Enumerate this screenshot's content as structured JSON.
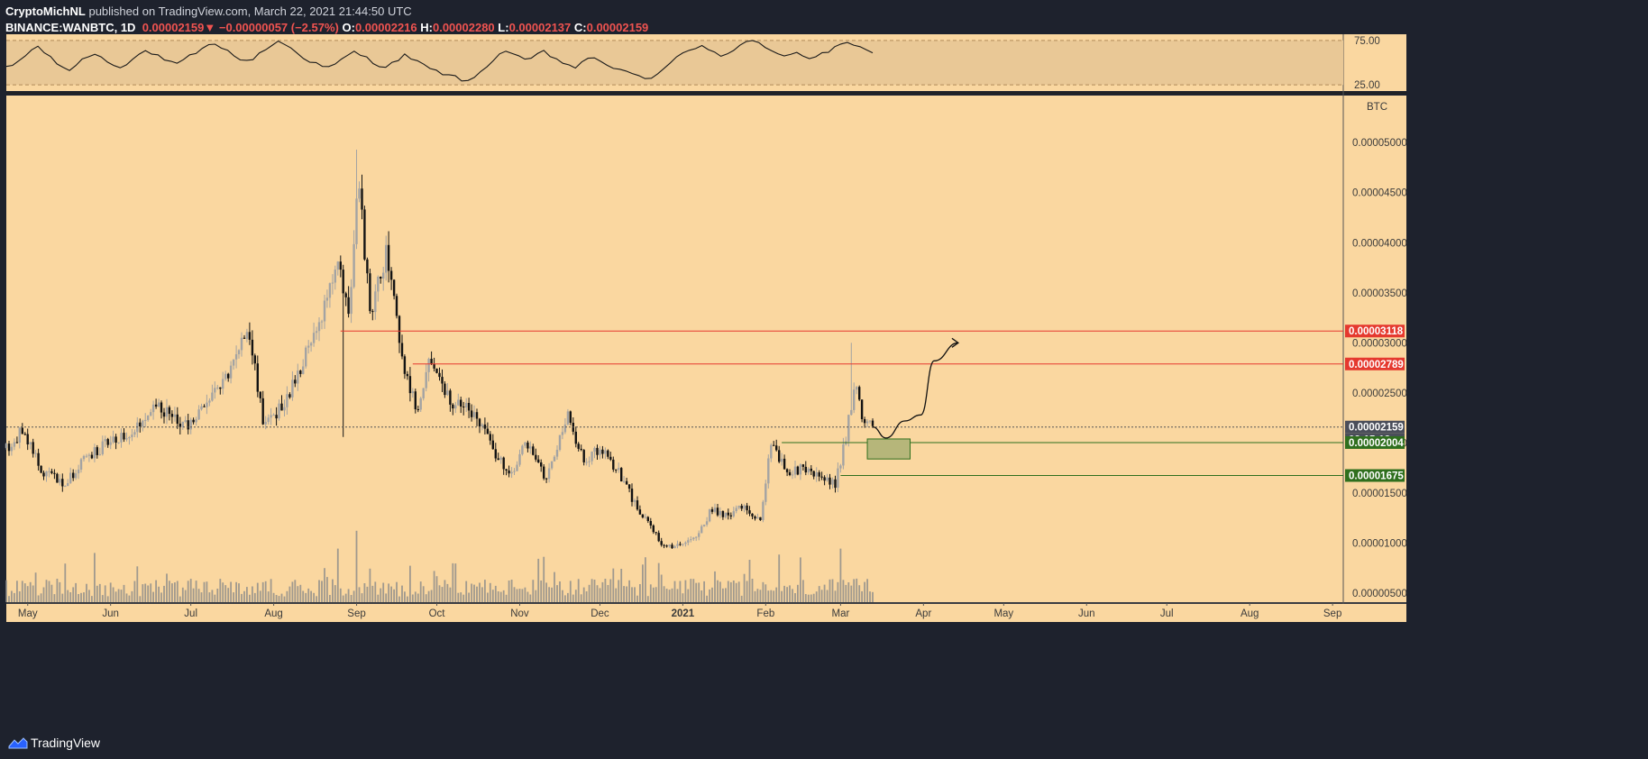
{
  "header": {
    "publisher": "CryptoMichNL",
    "published_text": "published on TradingView.com, March 22, 2021 21:44:50 UTC",
    "symbol": "BINANCE:WANBTC, 1D",
    "last": "0.00002159",
    "direction_glyph": "▼",
    "change": "−0.00000057 (−2.57%)",
    "open_label": "O:",
    "open": "0.00002216",
    "high_label": "H:",
    "high": "0.00002280",
    "low_label": "L:",
    "low": "0.00002137",
    "close_label": "C:",
    "close": "0.00002159"
  },
  "footer": {
    "brand": "TradingView",
    "logo_icon": "tradingview-logo-icon"
  },
  "colors": {
    "background": "#fad7a0",
    "frame": "#1e222d",
    "rsi_band": "#e9c896",
    "up_candle": "#a3a3a3",
    "down_candle": "#131313",
    "resistance": "#e5392f",
    "support": "#2f6f1e",
    "zone_fill": "#b6b67a",
    "last_price_badge": "#4a4e5a"
  },
  "chart_data": [
    {
      "type": "line",
      "name": "rsi-pane",
      "y_ticks": [
        "75.00",
        "25.00"
      ],
      "bands": [
        75,
        25
      ],
      "ylim": [
        18,
        82
      ],
      "values": [
        44,
        47,
        52,
        58,
        64,
        68,
        62,
        55,
        49,
        45,
        42,
        47,
        53,
        58,
        60,
        56,
        51,
        48,
        46,
        49,
        54,
        59,
        63,
        61,
        57,
        53,
        50,
        48,
        52,
        57,
        61,
        65,
        69,
        72,
        68,
        63,
        58,
        54,
        51,
        55,
        60,
        65,
        70,
        74,
        71,
        66,
        61,
        56,
        52,
        49,
        46,
        44,
        48,
        53,
        58,
        62,
        59,
        55,
        51,
        47,
        45,
        49,
        54,
        58,
        55,
        51,
        47,
        43,
        40,
        38,
        36,
        34,
        31,
        28,
        33,
        40,
        47,
        53,
        59,
        64,
        60,
        56,
        52,
        55,
        59,
        62,
        58,
        54,
        50,
        47,
        45,
        49,
        53,
        56,
        52,
        48,
        44,
        41,
        39,
        37,
        35,
        33,
        34,
        38,
        43,
        49,
        55,
        60,
        64,
        67,
        70,
        66,
        62,
        58,
        61,
        65,
        69,
        73,
        76,
        71,
        66,
        62,
        59,
        57,
        60,
        63,
        58,
        55,
        57,
        60,
        62,
        66,
        72,
        74,
        70,
        66,
        63,
        61
      ]
    },
    {
      "type": "candlestick",
      "name": "wanbtc-price",
      "unit": "BTC",
      "ylim": [
        4.1e-06,
        5.47e-05
      ],
      "x_labels": [
        "May",
        "Jun",
        "Jul",
        "Aug",
        "Sep",
        "Oct",
        "Nov",
        "Dec",
        "2021",
        "Feb",
        "Mar",
        "Apr",
        "May",
        "Jun",
        "Jul",
        "Aug",
        "Sep"
      ],
      "y_ticks": [
        5e-06,
        1e-05,
        1.5e-05,
        2e-05,
        2.5e-05,
        3e-05,
        3.5e-05,
        4e-05,
        4.5e-05,
        5e-05
      ],
      "y_tick_labels": [
        "0.00000500",
        "0.00001000",
        "0.00001500",
        "0.00002000",
        "0.00002500",
        "0.00003000",
        "0.00003500",
        "0.00004000",
        "0.00004500",
        "0.00005000"
      ],
      "anchor_path": [
        [
          0,
          1.95e-05
        ],
        [
          6,
          2.12e-05
        ],
        [
          14,
          1.7e-05
        ],
        [
          22,
          1.6e-05
        ],
        [
          30,
          1.85e-05
        ],
        [
          38,
          2e-05
        ],
        [
          48,
          2.15e-05
        ],
        [
          56,
          2.4e-05
        ],
        [
          62,
          2.25e-05
        ],
        [
          68,
          2.15e-05
        ],
        [
          76,
          2.4e-05
        ],
        [
          84,
          2.75e-05
        ],
        [
          90,
          3.2e-05
        ],
        [
          96,
          2.25e-05
        ],
        [
          104,
          2.35e-05
        ],
        [
          112,
          2.9e-05
        ],
        [
          118,
          3.3e-05
        ],
        [
          124,
          3.75e-05
        ],
        [
          128,
          3.3e-05
        ],
        [
          132,
          4.65e-05
        ],
        [
          136,
          3.25e-05
        ],
        [
          142,
          3.9e-05
        ],
        [
          148,
          2.85e-05
        ],
        [
          154,
          2.3e-05
        ],
        [
          158,
          2.85e-05
        ],
        [
          166,
          2.4e-05
        ],
        [
          174,
          2.32e-05
        ],
        [
          182,
          1.95e-05
        ],
        [
          188,
          1.65e-05
        ],
        [
          194,
          2e-05
        ],
        [
          202,
          1.65e-05
        ],
        [
          210,
          2.25e-05
        ],
        [
          216,
          1.8e-05
        ],
        [
          222,
          1.95e-05
        ],
        [
          228,
          1.75e-05
        ],
        [
          234,
          1.45e-05
        ],
        [
          240,
          1.2e-05
        ],
        [
          246,
          9.5e-06
        ],
        [
          252,
          1e-05
        ],
        [
          258,
          1.05e-05
        ],
        [
          264,
          1.35e-05
        ],
        [
          270,
          1.25e-05
        ],
        [
          276,
          1.4e-05
        ],
        [
          282,
          1.2e-05
        ],
        [
          286,
          2e-05
        ],
        [
          292,
          1.7e-05
        ],
        [
          298,
          1.75e-05
        ],
        [
          304,
          1.65e-05
        ],
        [
          310,
          1.6e-05
        ],
        [
          314,
          2.05e-05
        ],
        [
          316,
          2.4e-05
        ],
        [
          318,
          2.6e-05
        ],
        [
          320,
          2.28e-05
        ],
        [
          322,
          2.16e-05
        ],
        [
          323,
          2.16e-05
        ],
        [
          324,
          2.16e-05
        ]
      ],
      "volume_range": [
        0,
        1.0
      ],
      "drawings": {
        "resistance_levels": [
          3.118e-05,
          2.789e-05
        ],
        "support_levels": [
          2.004e-05,
          1.675e-05
        ],
        "last_price": 2.159e-05,
        "buy_zone_price_range": [
          1.84e-05,
          2.04e-05
        ],
        "projection_path": [
          [
            324,
            2.16e-05
          ],
          [
            329,
            2.05e-05
          ],
          [
            336,
            2.22e-05
          ],
          [
            342,
            2.28e-05
          ],
          [
            347,
            2.82e-05
          ],
          [
            356,
            3e-05
          ]
        ]
      },
      "price_badges": [
        {
          "label": "0.00003118",
          "kind": "resistance"
        },
        {
          "label": "0.00002789",
          "kind": "resistance"
        },
        {
          "label": "0.00002159",
          "kind": "last"
        },
        {
          "label": "02:15:12",
          "kind": "countdown"
        },
        {
          "label": "0.00002004",
          "kind": "support"
        },
        {
          "label": "0.00001675",
          "kind": "support"
        }
      ]
    }
  ]
}
